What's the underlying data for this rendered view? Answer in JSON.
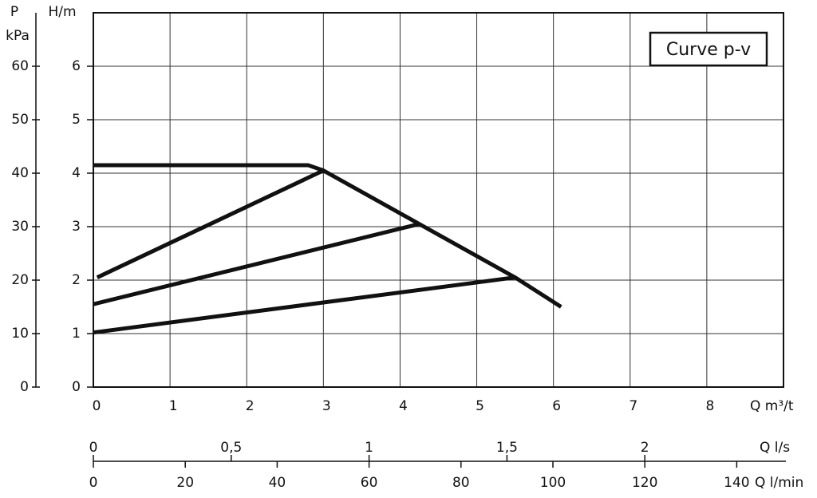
{
  "chart_data": {
    "type": "line",
    "annotation": "Curve p-v",
    "xlabel": "Q m³/t",
    "ylabel": "H/m",
    "xlim": [
      0,
      9
    ],
    "xticks": [
      0,
      1,
      2,
      3,
      4,
      5,
      6,
      7,
      8
    ],
    "ylim": [
      0,
      7
    ],
    "yticks": [
      0,
      1,
      2,
      3,
      4,
      5,
      6
    ],
    "grid": true,
    "series": [
      {
        "color": "#111111",
        "x": [
          0,
          2.8,
          3,
          4.25,
          5.5,
          6.1
        ],
        "values": [
          4.15,
          4.15,
          4.05,
          3.05,
          2.05,
          1.5
        ]
      },
      {
        "color": "#111111",
        "x": [
          0.05,
          3
        ],
        "values": [
          2.05,
          4.05
        ]
      },
      {
        "color": "#111111",
        "x": [
          0,
          4.25
        ],
        "values": [
          1.55,
          3.05
        ]
      },
      {
        "color": "#111111",
        "x": [
          0,
          5.5
        ],
        "values": [
          1.02,
          2.05
        ]
      }
    ],
    "p_axis": {
      "label": "P",
      "unit": "kPa",
      "lim": [
        0,
        70
      ],
      "ticks": [
        0,
        10,
        20,
        30,
        40,
        50,
        60
      ]
    },
    "q_ls_axis": {
      "label": "Q l/s",
      "lim": [
        0,
        2.5
      ],
      "ticks": [
        0,
        {
          "value": 0.5,
          "label": "0,5"
        },
        1,
        {
          "value": 1.5,
          "label": "1,5"
        },
        2
      ]
    },
    "q_lmin_axis": {
      "label": "Q l/min",
      "lim": [
        0,
        150
      ],
      "ticks": [
        0,
        20,
        40,
        60,
        80,
        100,
        120,
        140
      ]
    }
  }
}
